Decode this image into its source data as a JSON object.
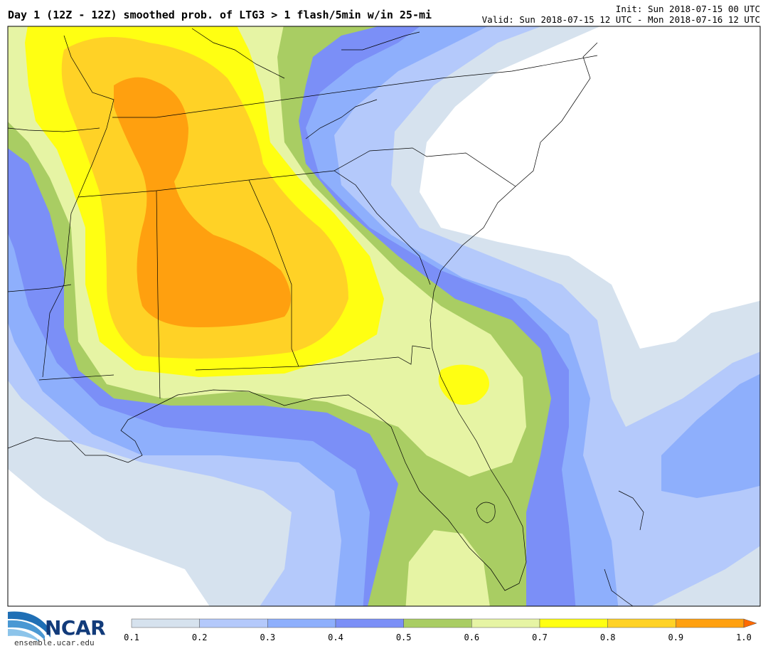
{
  "header": {
    "title": "Day 1 (12Z - 12Z) smoothed prob. of LTG3 > 1 flash/5min w/in 25-mi",
    "init": "Init: Sun 2018-07-15 00 UTC",
    "valid": "Valid: Sun 2018-07-15 12 UTC - Mon 2018-07-16 12 UTC"
  },
  "logo": {
    "name": "NCAR",
    "url_text": "ensemble.ucar.edu"
  },
  "colorbar": {
    "ticks": [
      "0.1",
      "0.2",
      "0.3",
      "0.4",
      "0.5",
      "0.6",
      "0.7",
      "0.8",
      "0.9",
      "1.0"
    ],
    "colors": [
      "#d6e2ee",
      "#b4c9fb",
      "#8eaffc",
      "#7b8ff7",
      "#a9cd63",
      "#e6f4a4",
      "#ffff12",
      "#ffd226",
      "#ffa00f",
      "#ff6a00"
    ]
  },
  "map": {
    "region": "Southeastern United States",
    "field": "probability of lightning",
    "level_colors": {
      "p01": "#d6e2ee",
      "p02": "#b4c9fb",
      "p03": "#8eaffc",
      "p04": "#7b8ff7",
      "p05": "#a9cd63",
      "p06": "#e6f4a4",
      "p07": "#ffff12",
      "p08": "#ffd226",
      "p09": "#ffa00f"
    }
  }
}
